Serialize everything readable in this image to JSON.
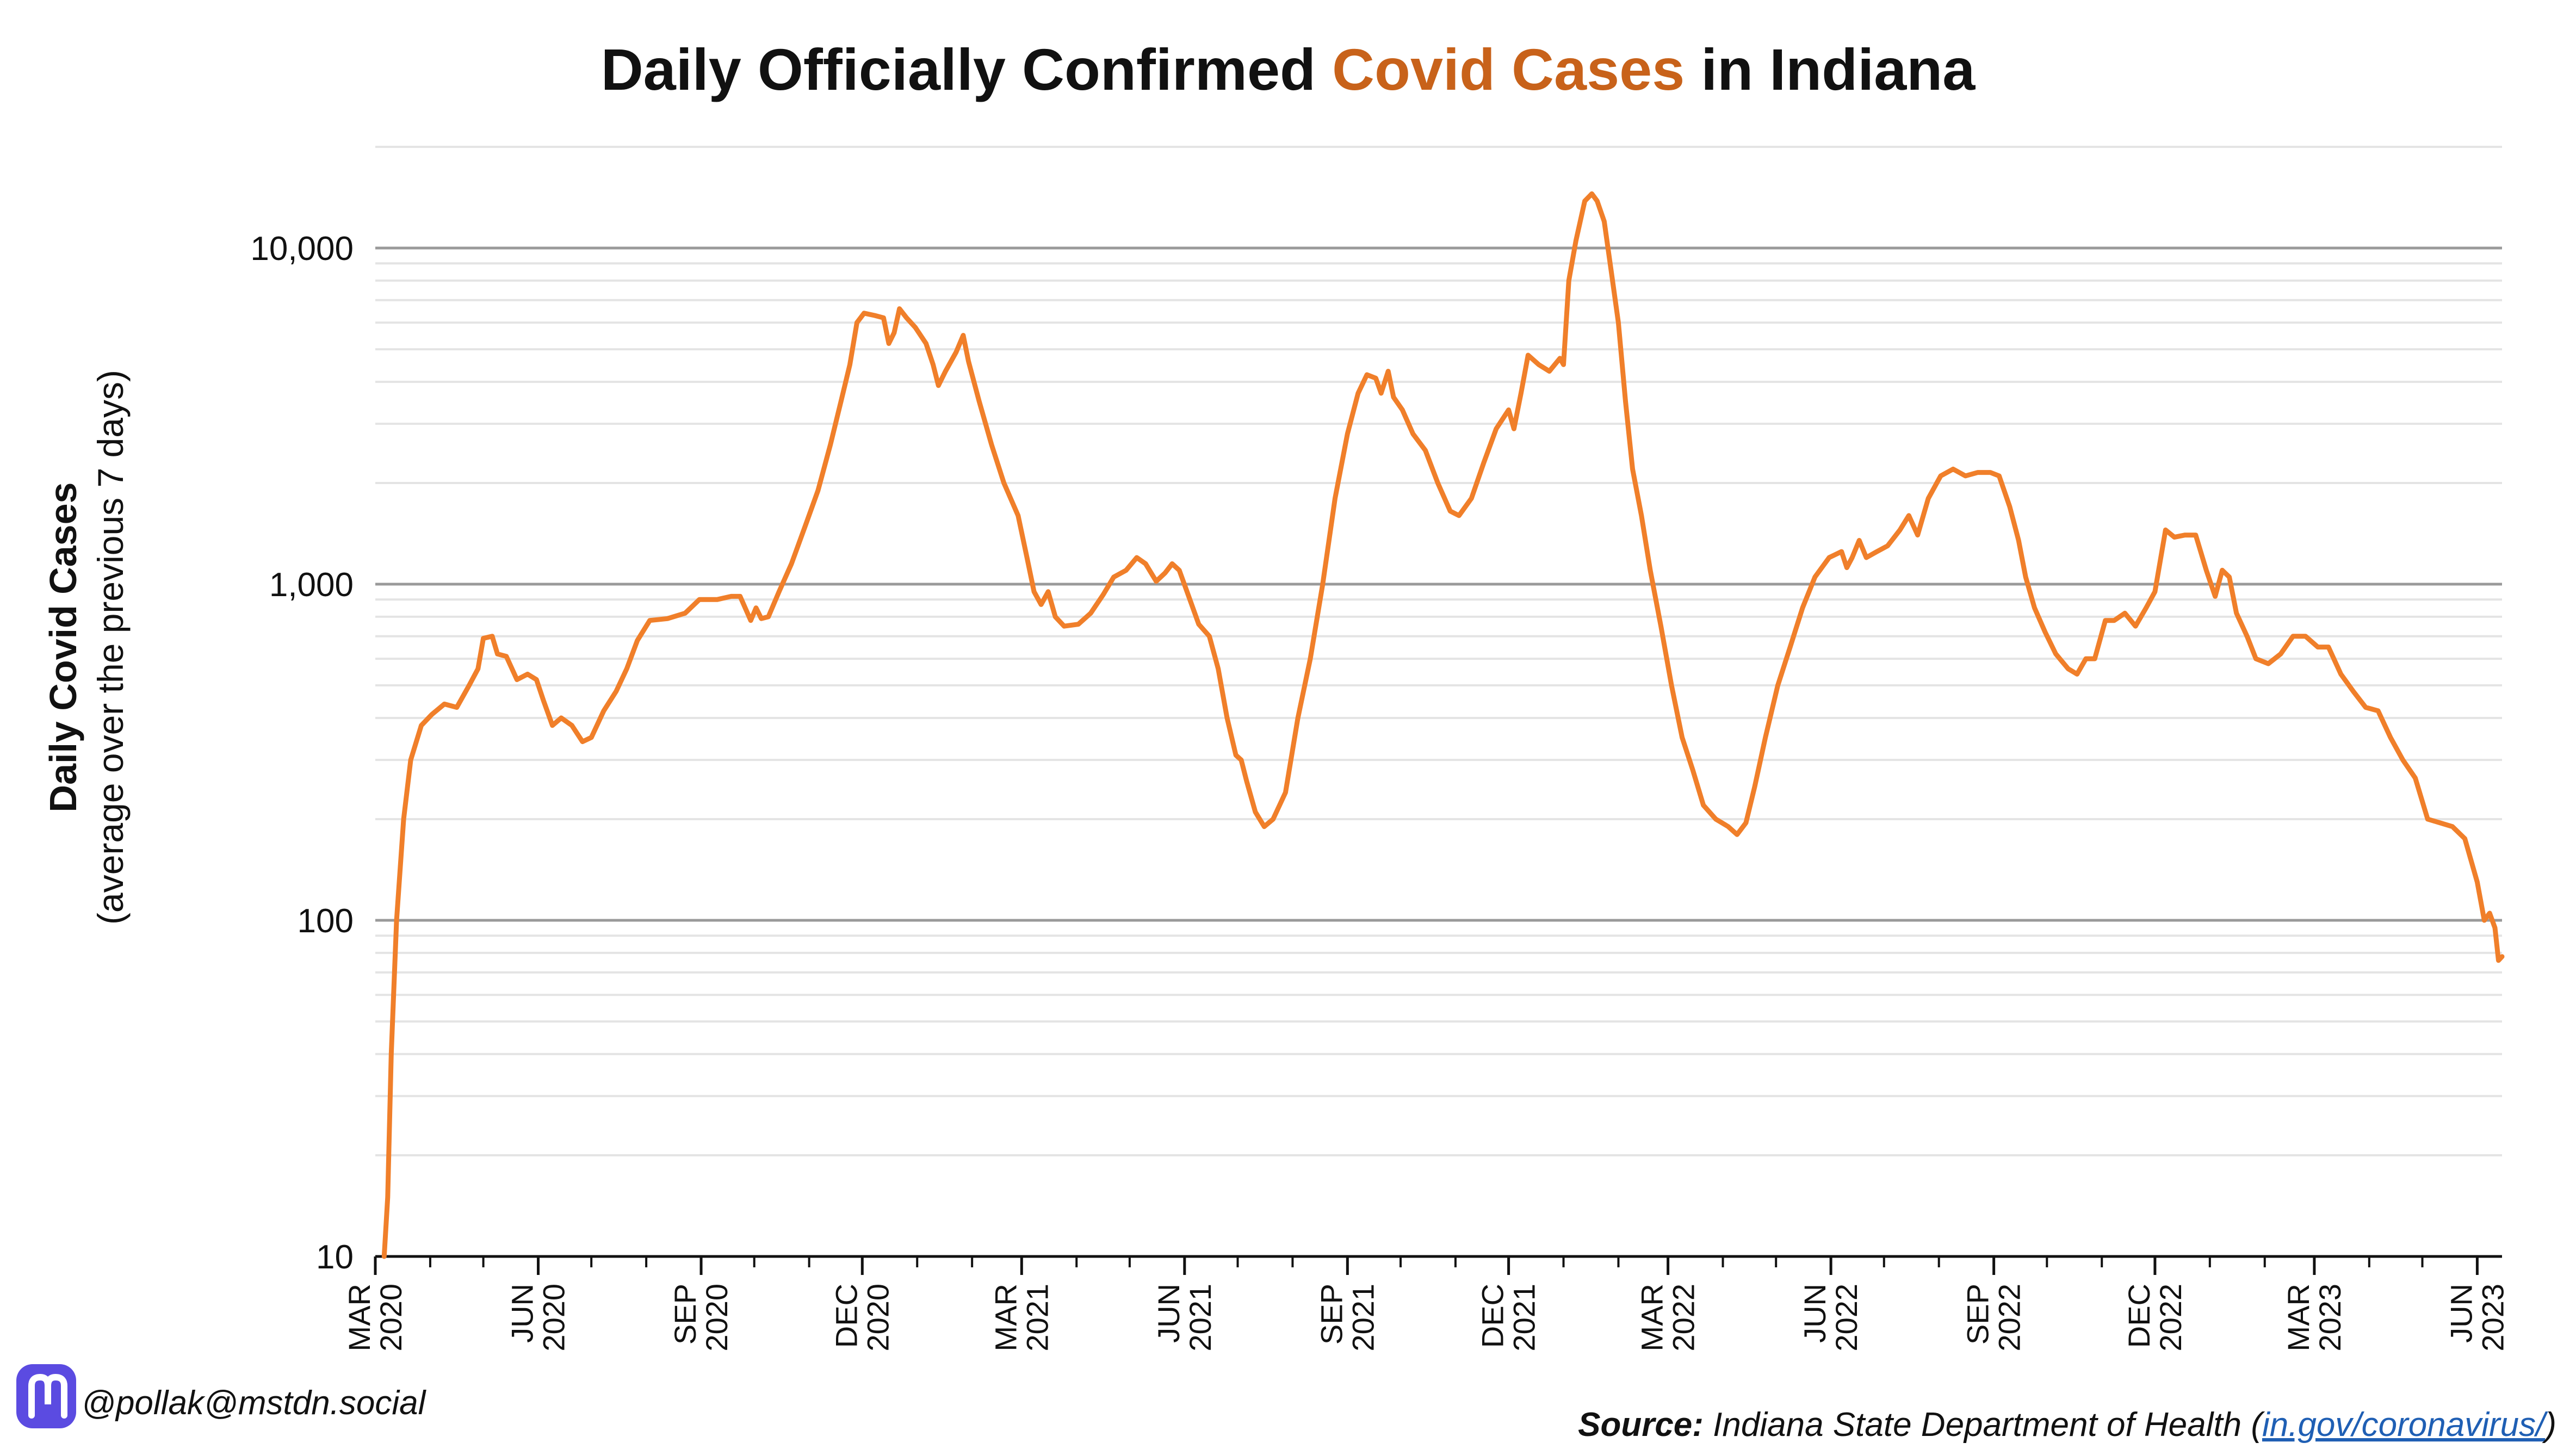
{
  "chart_data": {
    "type": "line",
    "title_parts": [
      "Daily Officially Confirmed ",
      "Covid Cases",
      " in Indiana"
    ],
    "title_highlight_color": "#c8621a",
    "ylabel": "Daily Covid Cases",
    "ylabel_sub": "(average over the previous 7 days)",
    "yscale": "log",
    "ylim": [
      10,
      20000
    ],
    "yticks": [
      10,
      100,
      1000,
      10000
    ],
    "ytick_labels": [
      "10",
      "100",
      "1,000",
      "10,000"
    ],
    "xlim": [
      "2020-03-01",
      "2023-06-15"
    ],
    "xticks": [
      {
        "month": "MAR",
        "year": "2020",
        "date": "2020-03-01"
      },
      {
        "month": "JUN",
        "year": "2020",
        "date": "2020-06-01"
      },
      {
        "month": "SEP",
        "year": "2020",
        "date": "2020-09-01"
      },
      {
        "month": "DEC",
        "year": "2020",
        "date": "2020-12-01"
      },
      {
        "month": "MAR",
        "year": "2021",
        "date": "2021-03-01"
      },
      {
        "month": "JUN",
        "year": "2021",
        "date": "2021-06-01"
      },
      {
        "month": "SEP",
        "year": "2021",
        "date": "2021-09-01"
      },
      {
        "month": "DEC",
        "year": "2021",
        "date": "2021-12-01"
      },
      {
        "month": "MAR",
        "year": "2022",
        "date": "2022-03-01"
      },
      {
        "month": "JUN",
        "year": "2022",
        "date": "2022-06-01"
      },
      {
        "month": "SEP",
        "year": "2022",
        "date": "2022-09-01"
      },
      {
        "month": "DEC",
        "year": "2022",
        "date": "2022-12-01"
      },
      {
        "month": "MAR",
        "year": "2023",
        "date": "2023-03-01"
      },
      {
        "month": "JUN",
        "year": "2023",
        "date": "2023-06-01"
      }
    ],
    "grid": true,
    "line_color": "#f07f2a",
    "series": [
      {
        "points": [
          [
            "2020-03-06",
            10
          ],
          [
            "2020-03-08",
            15
          ],
          [
            "2020-03-10",
            40
          ],
          [
            "2020-03-13",
            100
          ],
          [
            "2020-03-17",
            200
          ],
          [
            "2020-03-21",
            300
          ],
          [
            "2020-03-27",
            380
          ],
          [
            "2020-04-02",
            410
          ],
          [
            "2020-04-09",
            440
          ],
          [
            "2020-04-16",
            430
          ],
          [
            "2020-04-23",
            500
          ],
          [
            "2020-04-28",
            560
          ],
          [
            "2020-05-01",
            690
          ],
          [
            "2020-05-06",
            700
          ],
          [
            "2020-05-09",
            620
          ],
          [
            "2020-05-14",
            610
          ],
          [
            "2020-05-20",
            520
          ],
          [
            "2020-05-26",
            540
          ],
          [
            "2020-05-31",
            520
          ],
          [
            "2020-06-04",
            450
          ],
          [
            "2020-06-09",
            380
          ],
          [
            "2020-06-14",
            400
          ],
          [
            "2020-06-20",
            380
          ],
          [
            "2020-06-26",
            340
          ],
          [
            "2020-07-01",
            350
          ],
          [
            "2020-07-08",
            420
          ],
          [
            "2020-07-15",
            480
          ],
          [
            "2020-07-21",
            560
          ],
          [
            "2020-07-27",
            680
          ],
          [
            "2020-08-03",
            780
          ],
          [
            "2020-08-13",
            790
          ],
          [
            "2020-08-23",
            820
          ],
          [
            "2020-08-31",
            900
          ],
          [
            "2020-09-10",
            900
          ],
          [
            "2020-09-18",
            920
          ],
          [
            "2020-09-23",
            920
          ],
          [
            "2020-09-29",
            780
          ],
          [
            "2020-10-02",
            850
          ],
          [
            "2020-10-05",
            790
          ],
          [
            "2020-10-09",
            800
          ],
          [
            "2020-10-15",
            950
          ],
          [
            "2020-10-22",
            1150
          ],
          [
            "2020-10-30",
            1500
          ],
          [
            "2020-11-06",
            1900
          ],
          [
            "2020-11-13",
            2600
          ],
          [
            "2020-11-19",
            3500
          ],
          [
            "2020-11-24",
            4500
          ],
          [
            "2020-11-28",
            6000
          ],
          [
            "2020-12-02",
            6400
          ],
          [
            "2020-12-08",
            6300
          ],
          [
            "2020-12-13",
            6200
          ],
          [
            "2020-12-16",
            5200
          ],
          [
            "2020-12-19",
            5600
          ],
          [
            "2020-12-22",
            6600
          ],
          [
            "2020-12-26",
            6200
          ],
          [
            "2020-12-31",
            5800
          ],
          [
            "2021-01-06",
            5200
          ],
          [
            "2021-01-10",
            4500
          ],
          [
            "2021-01-13",
            3900
          ],
          [
            "2021-01-17",
            4300
          ],
          [
            "2021-01-23",
            4900
          ],
          [
            "2021-01-27",
            5500
          ],
          [
            "2021-01-30",
            4600
          ],
          [
            "2021-02-05",
            3500
          ],
          [
            "2021-02-12",
            2600
          ],
          [
            "2021-02-19",
            2000
          ],
          [
            "2021-02-27",
            1600
          ],
          [
            "2021-03-04",
            1200
          ],
          [
            "2021-03-08",
            950
          ],
          [
            "2021-03-12",
            870
          ],
          [
            "2021-03-16",
            950
          ],
          [
            "2021-03-20",
            800
          ],
          [
            "2021-03-25",
            750
          ],
          [
            "2021-04-02",
            760
          ],
          [
            "2021-04-09",
            820
          ],
          [
            "2021-04-16",
            930
          ],
          [
            "2021-04-22",
            1050
          ],
          [
            "2021-04-29",
            1100
          ],
          [
            "2021-05-05",
            1200
          ],
          [
            "2021-05-10",
            1150
          ],
          [
            "2021-05-16",
            1020
          ],
          [
            "2021-05-21",
            1080
          ],
          [
            "2021-05-25",
            1150
          ],
          [
            "2021-05-29",
            1100
          ],
          [
            "2021-06-04",
            900
          ],
          [
            "2021-06-09",
            760
          ],
          [
            "2021-06-15",
            700
          ],
          [
            "2021-06-20",
            560
          ],
          [
            "2021-06-25",
            400
          ],
          [
            "2021-06-30",
            310
          ],
          [
            "2021-07-03",
            300
          ],
          [
            "2021-07-06",
            260
          ],
          [
            "2021-07-11",
            210
          ],
          [
            "2021-07-16",
            190
          ],
          [
            "2021-07-21",
            200
          ],
          [
            "2021-07-28",
            240
          ],
          [
            "2021-08-04",
            400
          ],
          [
            "2021-08-11",
            600
          ],
          [
            "2021-08-18",
            1000
          ],
          [
            "2021-08-25",
            1800
          ],
          [
            "2021-09-01",
            2800
          ],
          [
            "2021-09-07",
            3700
          ],
          [
            "2021-09-12",
            4200
          ],
          [
            "2021-09-17",
            4100
          ],
          [
            "2021-09-20",
            3700
          ],
          [
            "2021-09-24",
            4300
          ],
          [
            "2021-09-27",
            3600
          ],
          [
            "2021-10-02",
            3300
          ],
          [
            "2021-10-08",
            2800
          ],
          [
            "2021-10-15",
            2500
          ],
          [
            "2021-10-22",
            2000
          ],
          [
            "2021-10-29",
            1650
          ],
          [
            "2021-11-03",
            1600
          ],
          [
            "2021-11-10",
            1800
          ],
          [
            "2021-11-17",
            2300
          ],
          [
            "2021-11-24",
            2900
          ],
          [
            "2021-12-01",
            3300
          ],
          [
            "2021-12-04",
            2900
          ],
          [
            "2021-12-08",
            3700
          ],
          [
            "2021-12-12",
            4800
          ],
          [
            "2021-12-18",
            4500
          ],
          [
            "2021-12-24",
            4300
          ],
          [
            "2021-12-30",
            4700
          ],
          [
            "2022-01-01",
            4500
          ],
          [
            "2022-01-04",
            8000
          ],
          [
            "2022-01-08",
            10500
          ],
          [
            "2022-01-13",
            13800
          ],
          [
            "2022-01-17",
            14500
          ],
          [
            "2022-01-20",
            13800
          ],
          [
            "2022-01-24",
            12000
          ],
          [
            "2022-01-28",
            8500
          ],
          [
            "2022-02-01",
            6000
          ],
          [
            "2022-02-05",
            3500
          ],
          [
            "2022-02-09",
            2200
          ],
          [
            "2022-02-14",
            1600
          ],
          [
            "2022-02-19",
            1100
          ],
          [
            "2022-02-25",
            750
          ],
          [
            "2022-03-03",
            500
          ],
          [
            "2022-03-09",
            350
          ],
          [
            "2022-03-15",
            280
          ],
          [
            "2022-03-21",
            220
          ],
          [
            "2022-03-28",
            200
          ],
          [
            "2022-04-04",
            190
          ],
          [
            "2022-04-09",
            180
          ],
          [
            "2022-04-14",
            195
          ],
          [
            "2022-04-19",
            250
          ],
          [
            "2022-04-25",
            350
          ],
          [
            "2022-05-02",
            500
          ],
          [
            "2022-05-09",
            650
          ],
          [
            "2022-05-16",
            850
          ],
          [
            "2022-05-23",
            1050
          ],
          [
            "2022-05-31",
            1200
          ],
          [
            "2022-06-07",
            1250
          ],
          [
            "2022-06-10",
            1120
          ],
          [
            "2022-06-13",
            1200
          ],
          [
            "2022-06-17",
            1350
          ],
          [
            "2022-06-21",
            1200
          ],
          [
            "2022-06-27",
            1250
          ],
          [
            "2022-07-03",
            1300
          ],
          [
            "2022-07-10",
            1450
          ],
          [
            "2022-07-15",
            1600
          ],
          [
            "2022-07-20",
            1400
          ],
          [
            "2022-07-26",
            1800
          ],
          [
            "2022-08-02",
            2100
          ],
          [
            "2022-08-09",
            2200
          ],
          [
            "2022-08-16",
            2100
          ],
          [
            "2022-08-23",
            2150
          ],
          [
            "2022-08-30",
            2150
          ],
          [
            "2022-09-04",
            2100
          ],
          [
            "2022-09-10",
            1700
          ],
          [
            "2022-09-15",
            1350
          ],
          [
            "2022-09-19",
            1050
          ],
          [
            "2022-09-24",
            850
          ],
          [
            "2022-09-30",
            720
          ],
          [
            "2022-10-06",
            620
          ],
          [
            "2022-10-13",
            560
          ],
          [
            "2022-10-18",
            540
          ],
          [
            "2022-10-23",
            600
          ],
          [
            "2022-10-28",
            600
          ],
          [
            "2022-11-03",
            780
          ],
          [
            "2022-11-08",
            780
          ],
          [
            "2022-11-14",
            820
          ],
          [
            "2022-11-20",
            750
          ],
          [
            "2022-11-26",
            850
          ],
          [
            "2022-12-01",
            950
          ],
          [
            "2022-12-07",
            1450
          ],
          [
            "2022-12-12",
            1380
          ],
          [
            "2022-12-18",
            1400
          ],
          [
            "2022-12-24",
            1400
          ],
          [
            "2022-12-30",
            1100
          ],
          [
            "2023-01-04",
            920
          ],
          [
            "2023-01-08",
            1100
          ],
          [
            "2023-01-12",
            1050
          ],
          [
            "2023-01-16",
            820
          ],
          [
            "2023-01-22",
            700
          ],
          [
            "2023-01-27",
            600
          ],
          [
            "2023-02-03",
            580
          ],
          [
            "2023-02-10",
            620
          ],
          [
            "2023-02-17",
            700
          ],
          [
            "2023-02-24",
            700
          ],
          [
            "2023-03-03",
            650
          ],
          [
            "2023-03-09",
            650
          ],
          [
            "2023-03-16",
            540
          ],
          [
            "2023-03-23",
            480
          ],
          [
            "2023-03-30",
            430
          ],
          [
            "2023-04-06",
            420
          ],
          [
            "2023-04-13",
            350
          ],
          [
            "2023-04-20",
            300
          ],
          [
            "2023-04-27",
            265
          ],
          [
            "2023-05-04",
            200
          ],
          [
            "2023-05-11",
            195
          ],
          [
            "2023-05-18",
            190
          ],
          [
            "2023-05-25",
            175
          ],
          [
            "2023-06-01",
            130
          ],
          [
            "2023-06-05",
            100
          ],
          [
            "2023-06-08",
            105
          ],
          [
            "2023-06-11",
            95
          ],
          [
            "2023-06-13",
            76
          ],
          [
            "2023-06-15",
            78
          ]
        ]
      }
    ]
  },
  "footer": {
    "handle": "@pollak@mstdn.social",
    "source_label": "Source:",
    "source_text": " Indiana State Department of Health (",
    "source_link": "in.gov/coronavirus/",
    "source_close": ")"
  },
  "colors": {
    "mastodon": "#5b4be1",
    "grid_major": "#9a9a9a",
    "grid_minor": "#e4e4e4"
  }
}
